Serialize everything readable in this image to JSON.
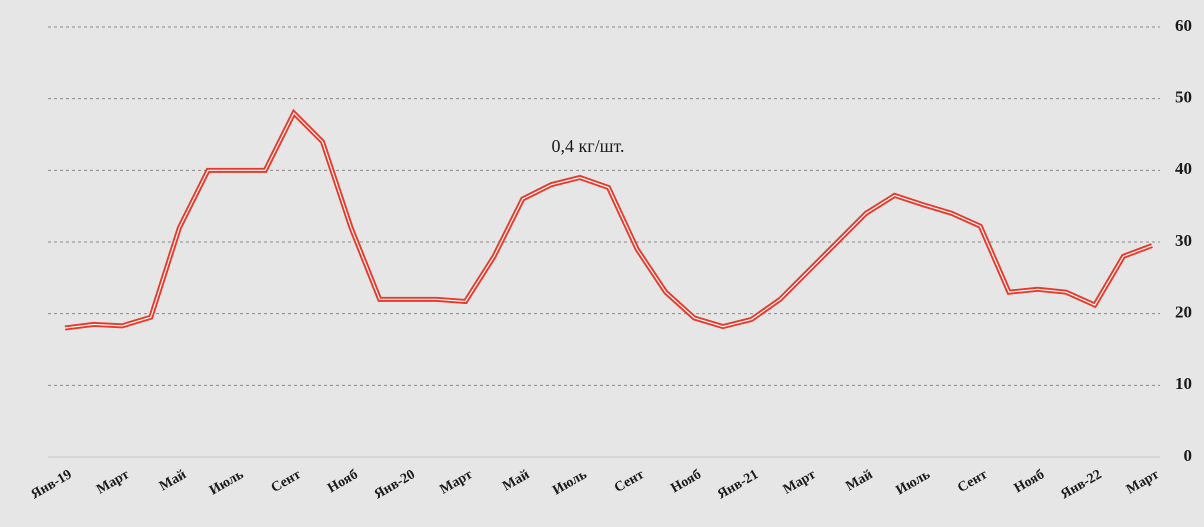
{
  "chart_data": {
    "type": "line",
    "annotation": "0,4 кг/шт.",
    "categories": [
      "Янв-19",
      null,
      "Март",
      null,
      "Май",
      null,
      "Июль",
      null,
      "Сент",
      null,
      "Нояб",
      null,
      "Янв-20",
      null,
      "Март",
      null,
      "Май",
      null,
      "Июль",
      null,
      "Сент",
      null,
      "Нояб",
      null,
      "Янв-21",
      null,
      "Март",
      null,
      "Май",
      null,
      "Июль",
      null,
      "Сент",
      null,
      "Нояб",
      null,
      "Янв-22",
      null,
      "Март"
    ],
    "series": [
      {
        "color": "#e8392a",
        "values": [
          18,
          18.5,
          18.3,
          19.5,
          32,
          40,
          40,
          40,
          48,
          44,
          32,
          22,
          22,
          22,
          21.7,
          28,
          36,
          38,
          39,
          37.6,
          29,
          23,
          19.4,
          18.2,
          19.2,
          22,
          26,
          30,
          34,
          36.5,
          35.2,
          34,
          32.2,
          23,
          23.4,
          23,
          21.2,
          28,
          29.5
        ]
      }
    ],
    "ylim": [
      0,
      60
    ],
    "yticks": [
      0,
      10,
      20,
      30,
      40,
      50,
      60
    ],
    "grid": true
  }
}
